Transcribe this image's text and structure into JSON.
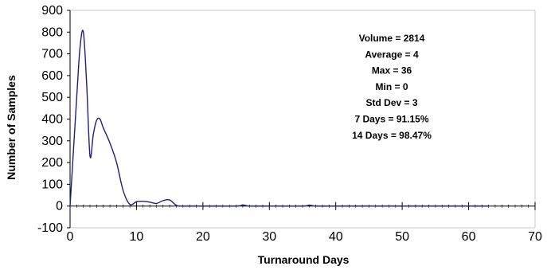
{
  "chart_data": {
    "type": "line",
    "title": "",
    "xlabel": "Turnaround Days",
    "ylabel": "Number of Samples",
    "xlim": [
      0,
      70
    ],
    "ylim": [
      -100,
      900
    ],
    "x_ticks": [
      0,
      10,
      20,
      30,
      40,
      50,
      60,
      70
    ],
    "y_ticks": [
      -100,
      0,
      100,
      200,
      300,
      400,
      500,
      600,
      700,
      800,
      900
    ],
    "x_minor_tick_step": 1,
    "grid": false,
    "line_color": "#1f1f7a",
    "series": [
      {
        "x": [
          0,
          1,
          1.5,
          2,
          2.5,
          3,
          3.5,
          4,
          4.5,
          5,
          6,
          7,
          8,
          9,
          10,
          11,
          12,
          13,
          14,
          15,
          16,
          17,
          18,
          20,
          25,
          26,
          27,
          30,
          35,
          36,
          37,
          40,
          50,
          60,
          63
        ],
        "y": [
          0,
          500,
          730,
          800,
          560,
          230,
          330,
          395,
          400,
          360,
          290,
          200,
          70,
          8,
          20,
          22,
          18,
          12,
          25,
          28,
          3,
          0,
          0,
          0,
          0,
          5,
          0,
          0,
          0,
          4,
          0,
          0,
          0,
          0,
          0
        ]
      }
    ],
    "stats_annotations": [
      "Volume = 2814",
      "Average = 4",
      "Max = 36",
      "Min = 0",
      "Std Dev = 3",
      "7 Days = 91.15%",
      "14 Days = 98.47%"
    ]
  }
}
